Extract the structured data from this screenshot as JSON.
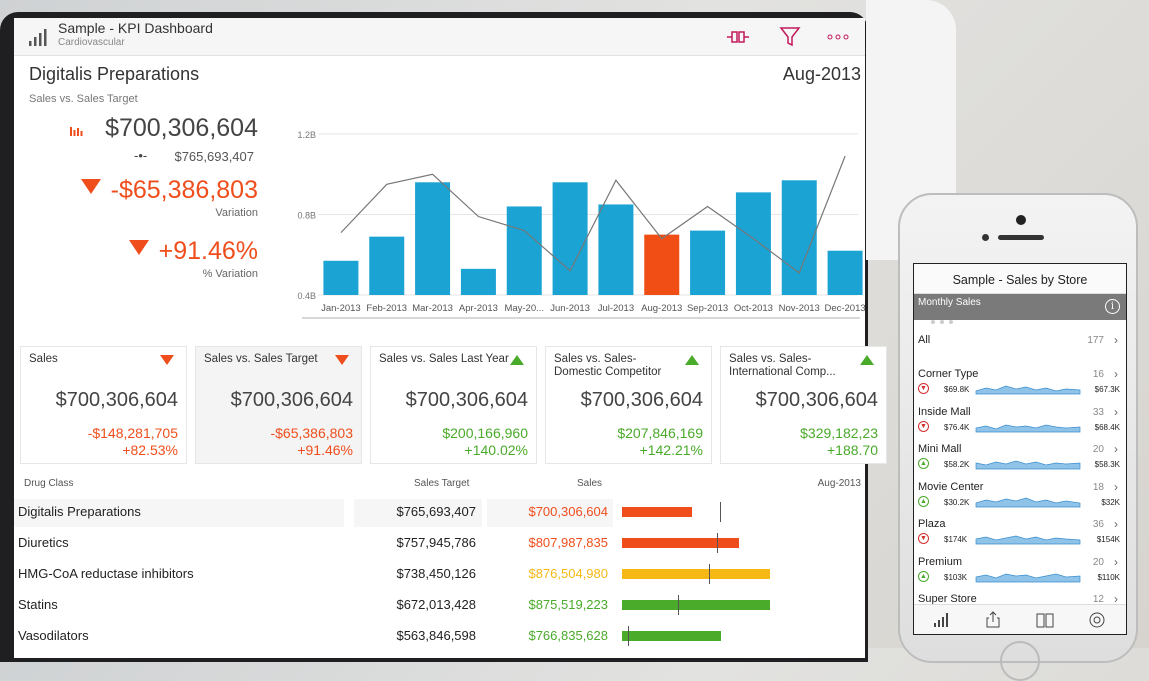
{
  "app": {
    "title": "Sample - KPI Dashboard",
    "subtitle": "Cardiovascular"
  },
  "section": {
    "title": "Digitalis Preparations",
    "subtitle": "Sales vs. Sales Target",
    "period": "Aug-2013"
  },
  "kpi": {
    "sales": "$700,306,604",
    "target": "$765,693,407",
    "variation": "-$65,386,803",
    "variation_label": "Variation",
    "pct_variation": "+91.46%",
    "pct_variation_label": "% Variation"
  },
  "chart_data": {
    "type": "bar",
    "categories": [
      "Jan-2013",
      "Feb-2013",
      "Mar-2013",
      "Apr-2013",
      "May-20...",
      "Jun-2013",
      "Jul-2013",
      "Aug-2013",
      "Sep-2013",
      "Oct-2013",
      "Nov-2013",
      "Dec-2013"
    ],
    "series": [
      {
        "values": [
          0.57,
          0.69,
          0.96,
          0.53,
          0.84,
          0.96,
          0.85,
          0.7,
          0.72,
          0.91,
          0.97,
          0.62
        ]
      },
      {
        "values": [
          0.71,
          0.95,
          1.0,
          0.79,
          0.72,
          0.52,
          0.97,
          0.68,
          0.84,
          0.68,
          0.51,
          1.09
        ]
      }
    ],
    "highlight_index": 7,
    "yticks": [
      "0.4B",
      "0.8B",
      "1.2B"
    ],
    "ylim": [
      0.4,
      1.2
    ],
    "colors": {
      "bar": "#1ba3d3",
      "highlight": "#f04e14",
      "line": "#777777"
    }
  },
  "cards": [
    {
      "title": "Sales",
      "value": "$700,306,604",
      "d1": "-$148,281,705",
      "d2": "+82.53%",
      "trend": "down",
      "d_color": "#ef4e1c"
    },
    {
      "title": "Sales vs. Sales Target",
      "value": "$700,306,604",
      "d1": "-$65,386,803",
      "d2": "+91.46%",
      "trend": "down",
      "d_color": "#ef4e1c"
    },
    {
      "title": "Sales vs. Sales Last Year",
      "value": "$700,306,604",
      "d1": "$200,166,960",
      "d2": "+140.02%",
      "trend": "up",
      "d_color": "#4aaa2a"
    },
    {
      "title": "Sales vs. Sales-Domestic Competitor",
      "value": "$700,306,604",
      "d1": "$207,846,169",
      "d2": "+142.21%",
      "trend": "up",
      "d_color": "#4aaa2a"
    },
    {
      "title": "Sales vs. Sales-International Comp...",
      "value": "$700,306,604",
      "d1": "$329,182,23",
      "d2": "+188.70",
      "trend": "up",
      "d_color": "#4aaa2a"
    }
  ],
  "table": {
    "headers": {
      "drug_class": "Drug Class",
      "target": "Sales Target",
      "sales": "Sales",
      "period": "Aug-2013"
    },
    "rows": [
      {
        "name": "Digitalis Preparations",
        "target": "$765,693,407",
        "sales": "$700,306,604",
        "color": "#ef4e1c",
        "fill": 0.47,
        "mark": 0.66
      },
      {
        "name": "Diuretics",
        "target": "$757,945,786",
        "sales": "$807,987,835",
        "color": "#ef4e1c",
        "fill": 0.79,
        "mark": 0.64
      },
      {
        "name": "HMG-CoA reductase inhibitors",
        "target": "$738,450,126",
        "sales": "$876,504,980",
        "color": "#f5b814",
        "fill": 1.0,
        "mark": 0.59
      },
      {
        "name": "Statins",
        "target": "$672,013,428",
        "sales": "$875,519,223",
        "color": "#4aaa2a",
        "fill": 1.0,
        "mark": 0.38
      },
      {
        "name": "Vasodilators",
        "target": "$563,846,598",
        "sales": "$766,835,628",
        "color": "#4aaa2a",
        "fill": 0.67,
        "mark": 0.04
      }
    ]
  },
  "phone": {
    "title": "Sample - Sales by Store",
    "band_label": "Monthly Sales",
    "info": "i",
    "all": {
      "label": "All",
      "count": "177"
    },
    "stores": [
      {
        "name": "Corner Type",
        "count": "16",
        "lo": "$69.8K",
        "hi": "$67.3K",
        "trend": "down"
      },
      {
        "name": "Inside Mall",
        "count": "33",
        "lo": "$76.4K",
        "hi": "$68.4K",
        "trend": "down"
      },
      {
        "name": "Mini Mall",
        "count": "20",
        "lo": "$58.2K",
        "hi": "$58.3K",
        "trend": "up"
      },
      {
        "name": "Movie Center",
        "count": "18",
        "lo": "$30.2K",
        "hi": "$32K",
        "trend": "up"
      },
      {
        "name": "Plaza",
        "count": "36",
        "lo": "$174K",
        "hi": "$154K",
        "trend": "down"
      },
      {
        "name": "Premium",
        "count": "20",
        "lo": "$103K",
        "hi": "$110K",
        "trend": "up"
      },
      {
        "name": "Super Store",
        "count": "12"
      }
    ]
  }
}
